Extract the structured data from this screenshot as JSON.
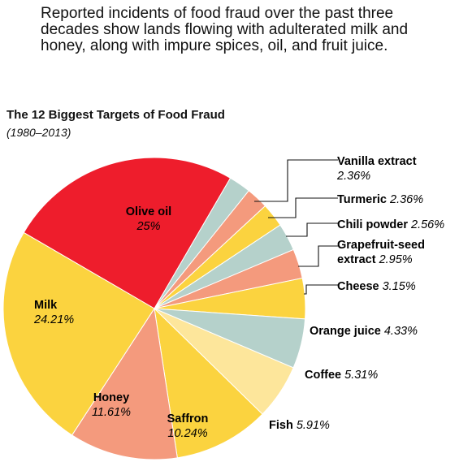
{
  "intro_text": "Reported incidents of food fraud over the past three decades show lands flowing with adulterated milk and honey, along with impure spices, oil, and fruit juice.",
  "chart_data": {
    "type": "pie",
    "title": "The 12 Biggest Targets of Food Fraud",
    "subtitle": "(1980–2013)",
    "slices": [
      {
        "name": "Olive oil",
        "value": 25,
        "label": "25%",
        "color": "#ee1d2c"
      },
      {
        "name": "Vanilla extract",
        "value": 2.36,
        "label": "2.36%",
        "color": "#b5d1cb"
      },
      {
        "name": "Turmeric",
        "value": 2.36,
        "label": "2.36%",
        "color": "#f49a7d"
      },
      {
        "name": "Chili powder",
        "value": 2.56,
        "label": "2.56%",
        "color": "#fbd33f"
      },
      {
        "name": "Grapefruit-seed extract",
        "name_lines": [
          "Grapefruit-seed",
          "extract"
        ],
        "value": 2.95,
        "label": "2.95%",
        "color": "#b5d1cb"
      },
      {
        "name": "Cheese",
        "value": 3.15,
        "label": "3.15%",
        "color": "#f49a7d"
      },
      {
        "name": "Orange juice",
        "value": 4.33,
        "label": "4.33%",
        "color": "#fbd33f"
      },
      {
        "name": "Coffee",
        "value": 5.31,
        "label": "5.31%",
        "color": "#b5d1cb"
      },
      {
        "name": "Fish",
        "value": 5.91,
        "label": "5.91%",
        "color": "#fde69b"
      },
      {
        "name": "Saffron",
        "value": 10.24,
        "label": "10.24%",
        "color": "#fbd33f"
      },
      {
        "name": "Honey",
        "value": 11.61,
        "label": "11.61%",
        "color": "#f49a7d"
      },
      {
        "name": "Milk",
        "value": 24.21,
        "label": "24.21%",
        "color": "#fbd33f"
      }
    ]
  }
}
